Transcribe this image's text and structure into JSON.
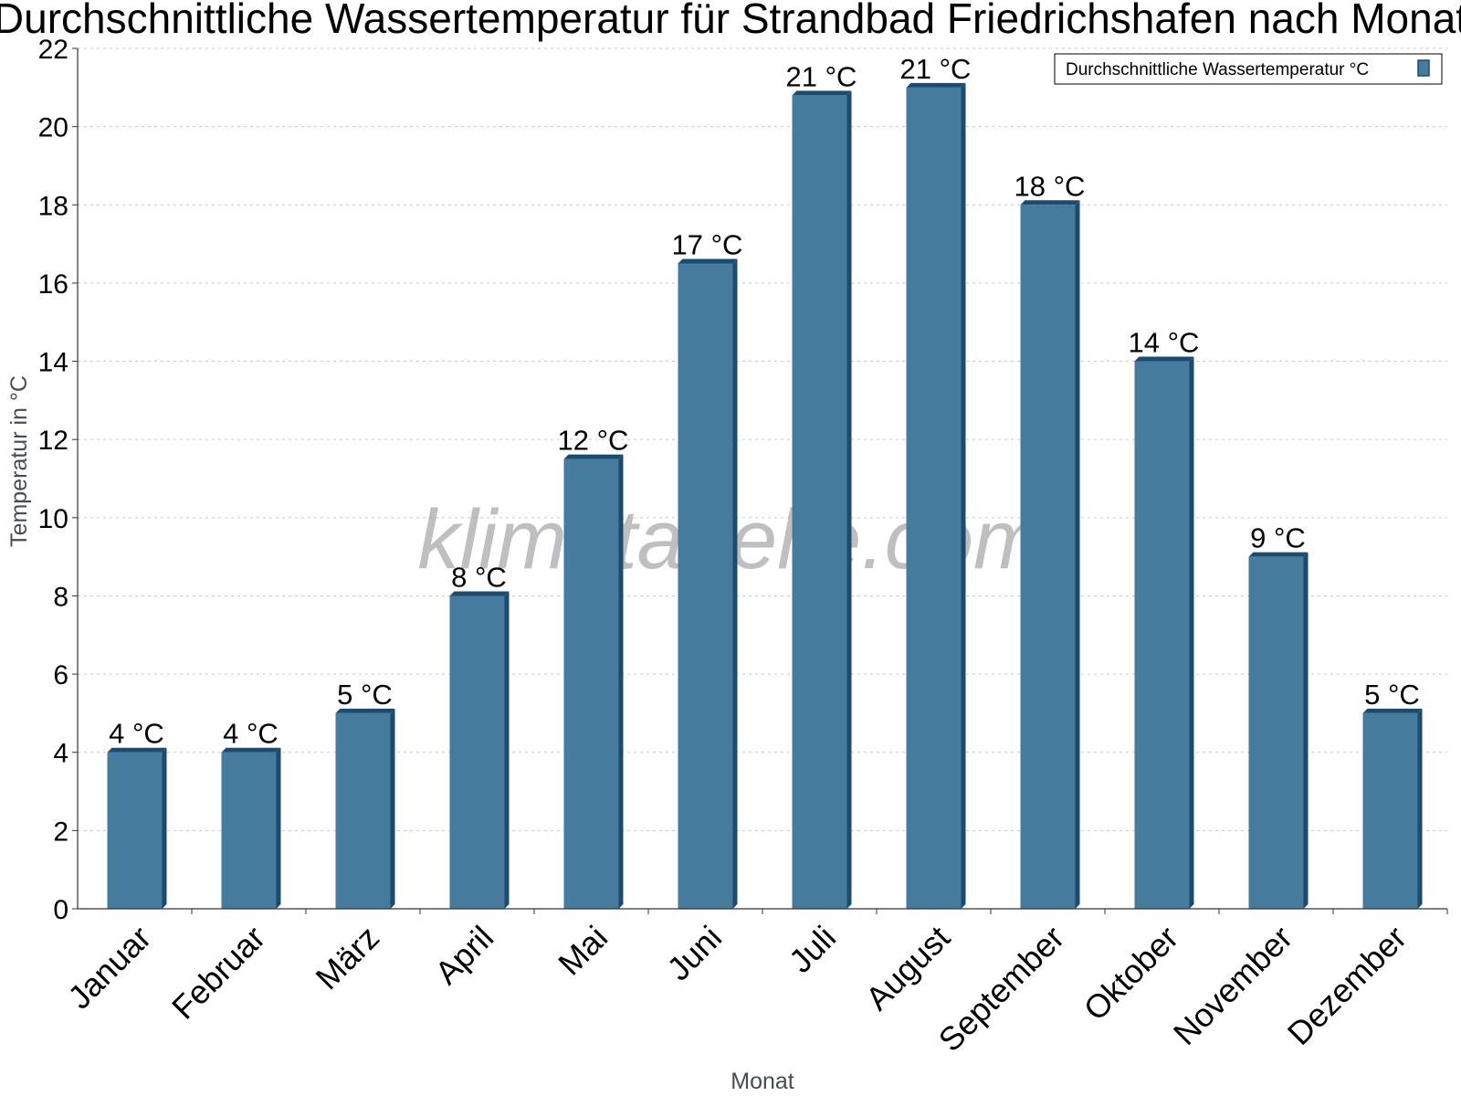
{
  "chart_data": {
    "type": "bar",
    "title": "Durchschnittliche Wassertemperatur für Strandbad Friedrichshafen nach Monat",
    "xlabel": "Monat",
    "ylabel": "Temperatur in °C",
    "categories": [
      "Januar",
      "Februar",
      "März",
      "April",
      "Mai",
      "Juni",
      "Juli",
      "August",
      "September",
      "Oktober",
      "November",
      "Dezember"
    ],
    "series": [
      {
        "name": "Durchschnittliche Wassertemperatur °C",
        "values": [
          4,
          4,
          5,
          8,
          11.5,
          16.5,
          20.8,
          21,
          18,
          14,
          9,
          5
        ],
        "labels": [
          "4 °C",
          "4 °C",
          "5 °C",
          "8 °C",
          "12 °C",
          "17 °C",
          "21 °C",
          "21 °C",
          "18 °C",
          "14 °C",
          "9 °C",
          "5 °C"
        ]
      }
    ],
    "ylim": [
      0,
      22
    ],
    "yticks": [
      0,
      2,
      4,
      6,
      8,
      10,
      12,
      14,
      16,
      18,
      20,
      22
    ],
    "grid": true,
    "legend": "top-right",
    "bar_color": "#457b9d",
    "bar_edge_color": "#1b4b6e",
    "watermark": "klimatabelle.com"
  }
}
